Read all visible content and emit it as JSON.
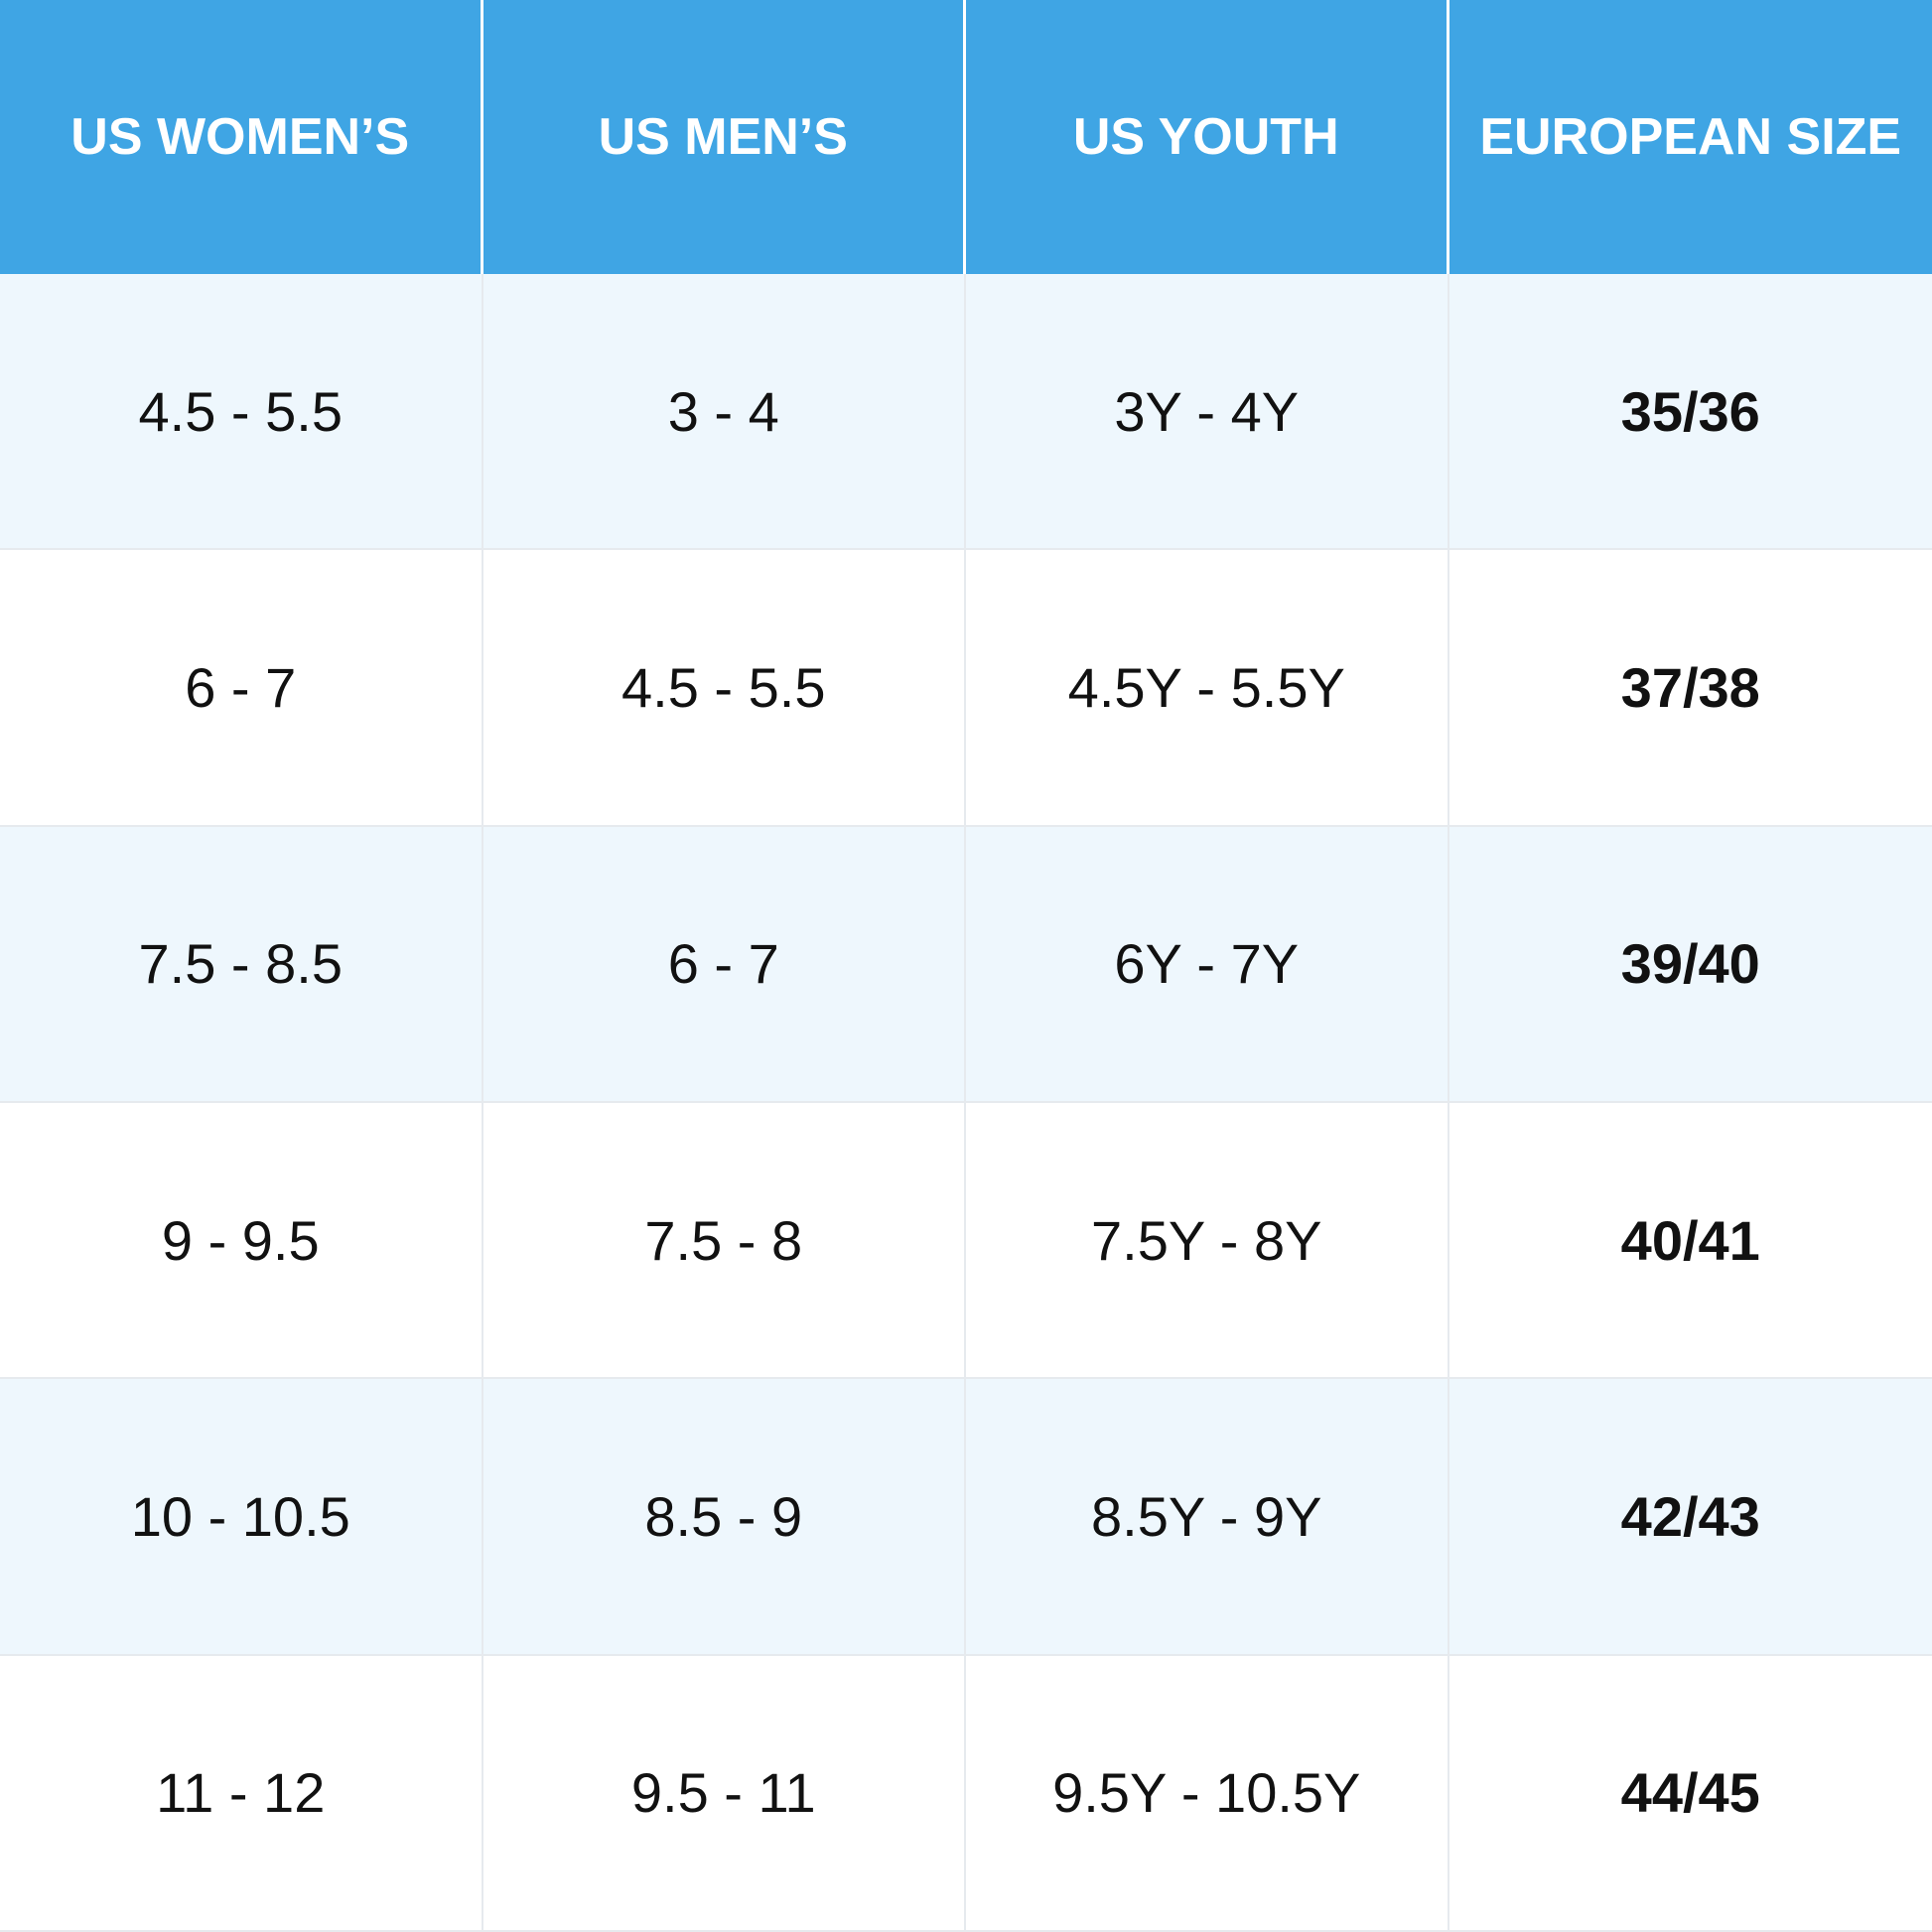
{
  "table": {
    "columns": [
      "US WOMEN’S",
      "US MEN’S",
      "US YOUTH",
      "EUROPEAN SIZE"
    ],
    "rows": [
      [
        "4.5 - 5.5",
        "3 - 4",
        "3Y - 4Y",
        "35/36"
      ],
      [
        "6 - 7",
        "4.5 - 5.5",
        "4.5Y - 5.5Y",
        "37/38"
      ],
      [
        "7.5 - 8.5",
        "6 - 7",
        "6Y - 7Y",
        "39/40"
      ],
      [
        "9 - 9.5",
        "7.5 - 8",
        "7.5Y - 8Y",
        "40/41"
      ],
      [
        "10 - 10.5",
        "8.5 - 9",
        "8.5Y - 9Y",
        "42/43"
      ],
      [
        "11 - 12",
        "9.5 - 11",
        "9.5Y - 10.5Y",
        "44/45"
      ]
    ]
  }
}
